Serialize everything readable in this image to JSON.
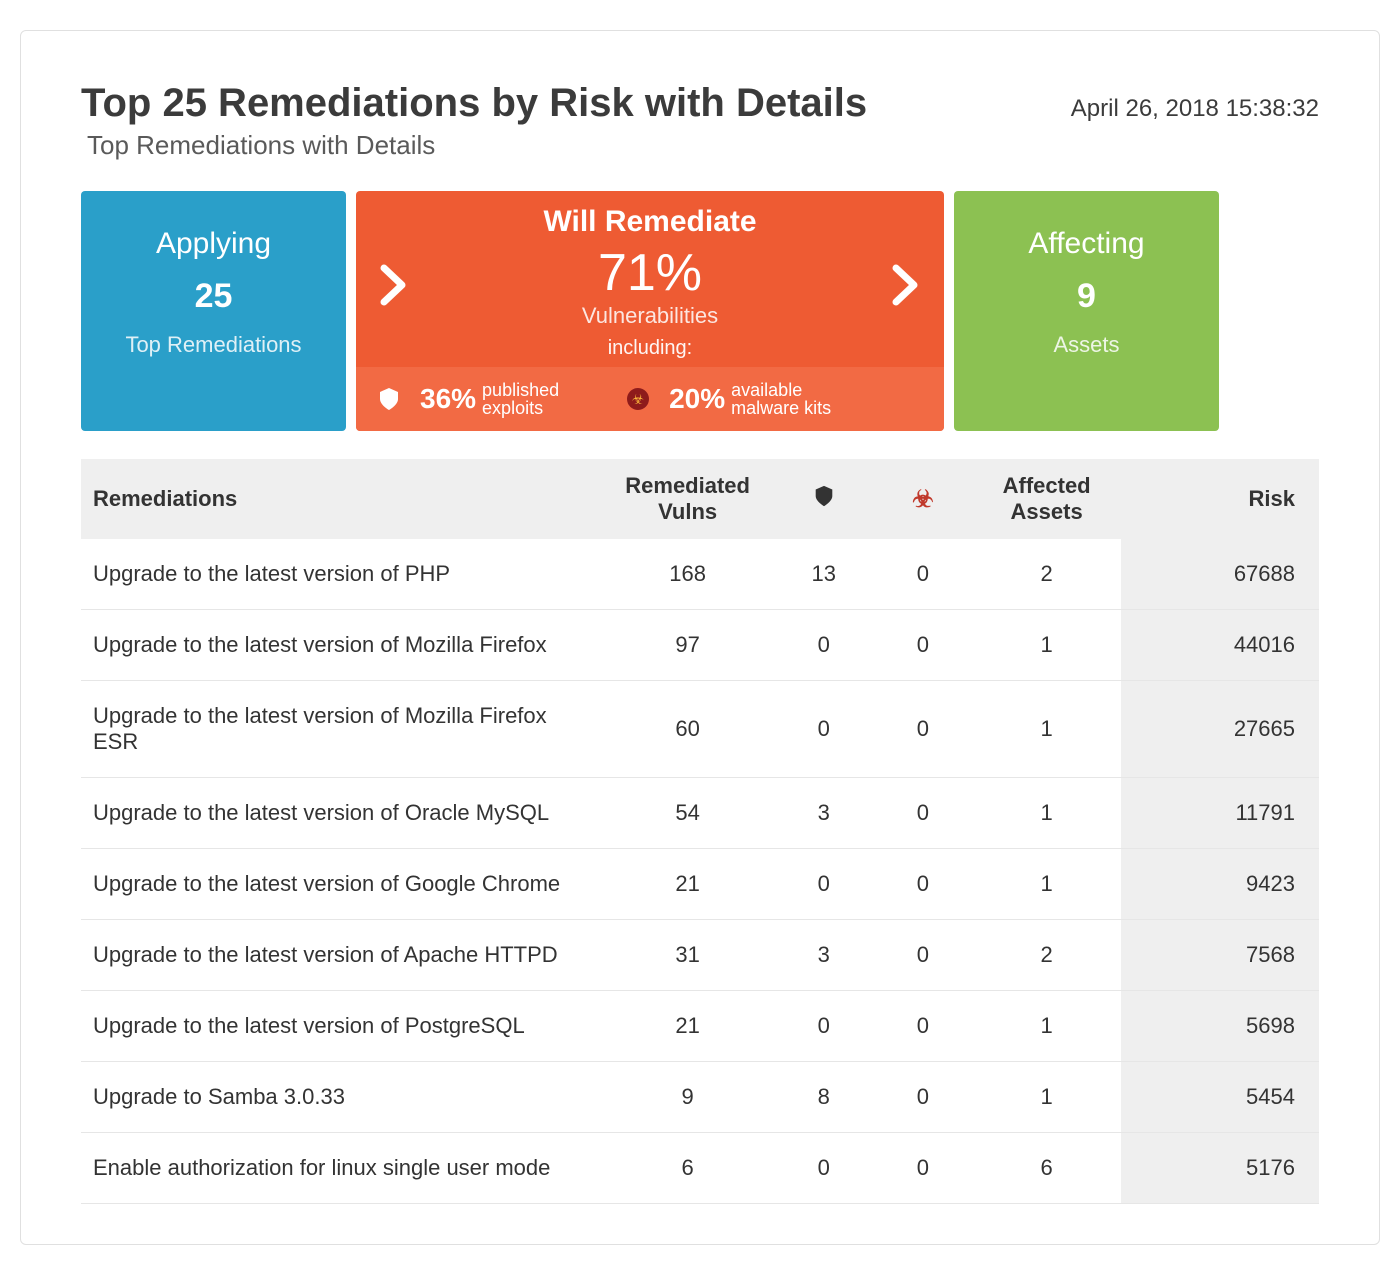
{
  "header": {
    "title": "Top 25 Remediations by Risk with Details",
    "subtitle": "Top Remediations with Details",
    "timestamp": "April 26, 2018  15:38:32"
  },
  "cards": {
    "applying": {
      "label": "Applying",
      "value": "25",
      "sublabel": "Top Remediations",
      "bg_color": "#2a9fc9"
    },
    "remediate": {
      "label": "Will Remediate",
      "value": "71%",
      "sublabel": "Vulnerabilities",
      "including_label": "including:",
      "bg_color": "#ee5b33",
      "footer_bg_color": "#f26a44",
      "exploits": {
        "pct": "36%",
        "line1": "published",
        "line2": "exploits"
      },
      "malware": {
        "pct": "20%",
        "line1": "available",
        "line2": "malware kits"
      }
    },
    "affecting": {
      "label": "Affecting",
      "value": "9",
      "sublabel": "Assets",
      "bg_color": "#8cc152"
    }
  },
  "table": {
    "columns": {
      "remediations": "Remediations",
      "vulns": "Remediated Vulns",
      "exploits_icon": "exploit-icon",
      "malware_icon": "biohazard-icon",
      "assets": "Affected Assets",
      "risk": "Risk"
    },
    "rows": [
      {
        "name": "Upgrade to the latest version of PHP",
        "vulns": 168,
        "exploits": 13,
        "malware": 0,
        "assets": 2,
        "risk": 67688
      },
      {
        "name": "Upgrade to the latest version of Mozilla Firefox",
        "vulns": 97,
        "exploits": 0,
        "malware": 0,
        "assets": 1,
        "risk": 44016
      },
      {
        "name": "Upgrade to the latest version of Mozilla Firefox ESR",
        "vulns": 60,
        "exploits": 0,
        "malware": 0,
        "assets": 1,
        "risk": 27665
      },
      {
        "name": "Upgrade to the latest version of Oracle MySQL",
        "vulns": 54,
        "exploits": 3,
        "malware": 0,
        "assets": 1,
        "risk": 11791
      },
      {
        "name": "Upgrade to the latest version of Google Chrome",
        "vulns": 21,
        "exploits": 0,
        "malware": 0,
        "assets": 1,
        "risk": 9423
      },
      {
        "name": "Upgrade to the latest version of Apache HTTPD",
        "vulns": 31,
        "exploits": 3,
        "malware": 0,
        "assets": 2,
        "risk": 7568
      },
      {
        "name": "Upgrade to the latest version of PostgreSQL",
        "vulns": 21,
        "exploits": 0,
        "malware": 0,
        "assets": 1,
        "risk": 5698
      },
      {
        "name": "Upgrade to Samba 3.0.33",
        "vulns": 9,
        "exploits": 8,
        "malware": 0,
        "assets": 1,
        "risk": 5454
      },
      {
        "name": "Enable authorization for linux single user mode",
        "vulns": 6,
        "exploits": 0,
        "malware": 0,
        "assets": 6,
        "risk": 5176
      }
    ],
    "header_bg": "#efefef",
    "risk_col_bg": "#efefef",
    "row_border": "#e6e6e6"
  }
}
